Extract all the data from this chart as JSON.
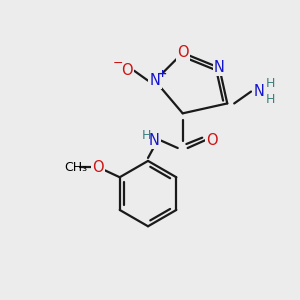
{
  "bg_color": "#ececec",
  "atom_colors": {
    "C": "#000000",
    "N": "#1414cc",
    "O": "#cc1414",
    "H": "#3d8080"
  },
  "bond_color": "#1a1a1a",
  "fig_size": [
    3.0,
    3.0
  ],
  "dpi": 100
}
